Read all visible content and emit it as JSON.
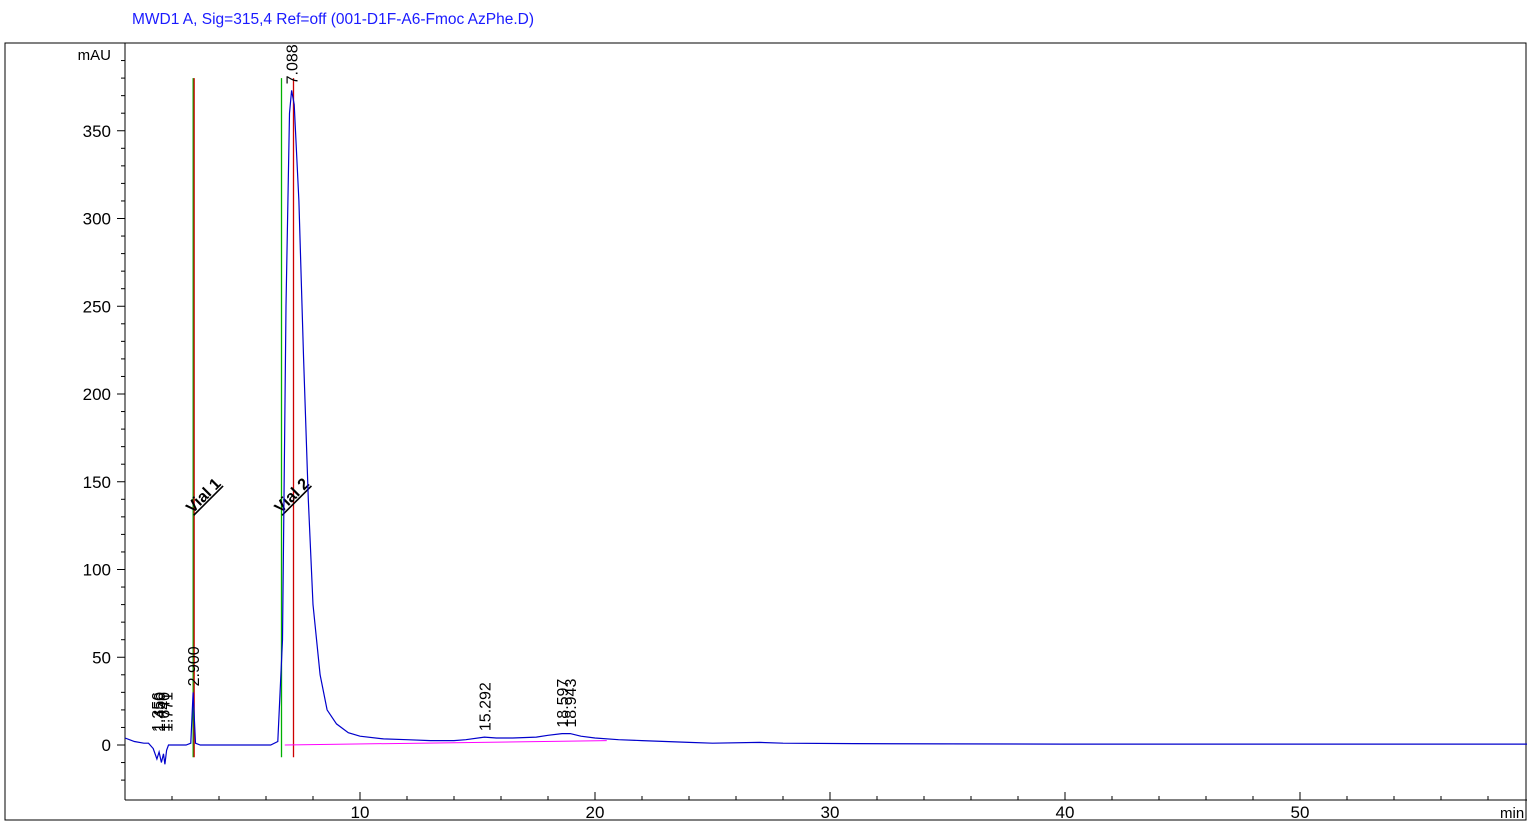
{
  "chart_data": {
    "type": "line",
    "title": "MWD1 A, Sig=315,4 Ref=off (001-D1F-A6-Fmoc AzPhe.D)",
    "ylabel": "mAU",
    "xlabel": "min",
    "xlim": [
      0,
      61
    ],
    "ylim": [
      -20,
      400
    ],
    "x_ticks": [
      10,
      20,
      30,
      40,
      50
    ],
    "y_ticks": [
      0,
      50,
      100,
      150,
      200,
      250,
      300,
      350
    ],
    "series": [
      {
        "color": "#0000cc",
        "x": [
          0,
          0.4,
          0.8,
          1.0,
          1.2,
          1.356,
          1.45,
          1.55,
          1.64,
          1.7,
          1.771,
          1.85,
          2.0,
          2.3,
          2.6,
          2.8,
          2.9,
          3.0,
          3.2,
          3.6,
          4.5,
          5.5,
          6.2,
          6.5,
          6.7,
          6.85,
          7.0,
          7.088,
          7.2,
          7.4,
          7.6,
          7.8,
          8.0,
          8.3,
          8.6,
          9.0,
          9.5,
          10,
          11,
          12,
          13,
          14,
          14.5,
          15.292,
          15.8,
          16.5,
          17.5,
          18.0,
          18.597,
          18.943,
          19.4,
          20.0,
          21,
          22,
          24,
          25,
          27,
          28,
          31,
          35,
          40,
          45,
          50,
          55,
          58,
          61
        ],
        "y": [
          4,
          2,
          1,
          1,
          -2,
          -8,
          -4,
          -10,
          -5,
          -11,
          -3,
          0,
          0,
          0,
          0,
          1,
          30,
          1,
          0,
          0,
          0,
          0,
          0,
          2,
          60,
          250,
          360,
          373,
          365,
          310,
          220,
          140,
          80,
          40,
          20,
          12,
          7,
          5,
          3.5,
          3,
          2.5,
          2.5,
          3,
          4.5,
          4,
          4,
          4.5,
          5.5,
          6.5,
          6.5,
          5,
          4,
          3,
          2.5,
          1.5,
          1,
          1.5,
          1,
          0.8,
          0.6,
          0.5,
          0.5,
          0.5,
          0.5,
          0.5,
          0.5
        ]
      }
    ],
    "baseline": {
      "color": "#ff00ff",
      "x": [
        6.8,
        20.5
      ],
      "y": [
        0,
        2.5
      ]
    },
    "peak_labels": [
      "1.356",
      "1.450",
      "1.640",
      "1.771",
      "2.900",
      "7.088",
      "15.292",
      "18.597",
      "18.943"
    ],
    "peak_times": [
      1.356,
      1.45,
      1.64,
      1.771,
      2.9,
      7.088,
      15.292,
      18.597,
      18.943
    ],
    "peak_heights": [
      4,
      4,
      4,
      4,
      30,
      373,
      4.5,
      6.5,
      6.5
    ],
    "vial_markers": [
      {
        "label": "Vial 1",
        "x": 2.9
      },
      {
        "label": "Vial 2",
        "x": 7.0
      }
    ],
    "colors": {
      "trace": "#0000cc",
      "title": "#1a1aff",
      "baseline": "#ff00ff",
      "vial_green": "#00b000",
      "vial_red": "#cc0000"
    }
  }
}
